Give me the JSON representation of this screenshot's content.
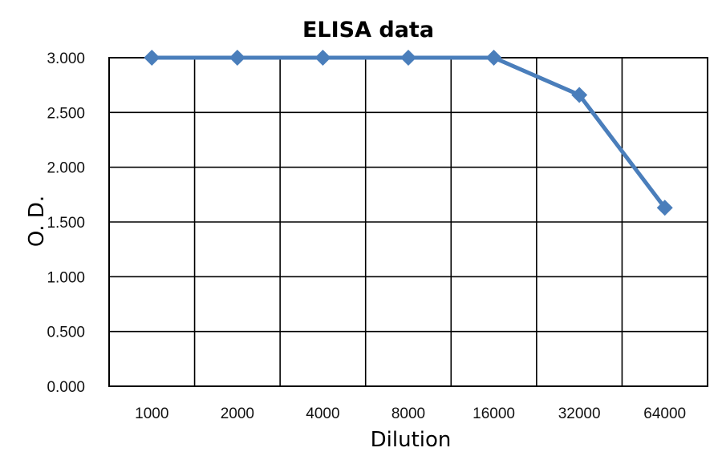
{
  "chart_data": {
    "type": "line",
    "title": "ELISA data",
    "xlabel": "Dilution",
    "ylabel": "O. D.",
    "categories": [
      "1000",
      "2000",
      "4000",
      "8000",
      "16000",
      "32000",
      "64000"
    ],
    "series": [
      {
        "values": [
          3.0,
          3.0,
          3.0,
          3.0,
          3.0,
          2.66,
          1.63
        ]
      }
    ],
    "ylim": [
      0,
      3.0
    ],
    "yticks": [
      "0.000",
      "0.500",
      "1.000",
      "1.500",
      "2.000",
      "2.500",
      "3.000"
    ],
    "grid": true,
    "marker": "diamond",
    "color": "#4a7ebb"
  }
}
